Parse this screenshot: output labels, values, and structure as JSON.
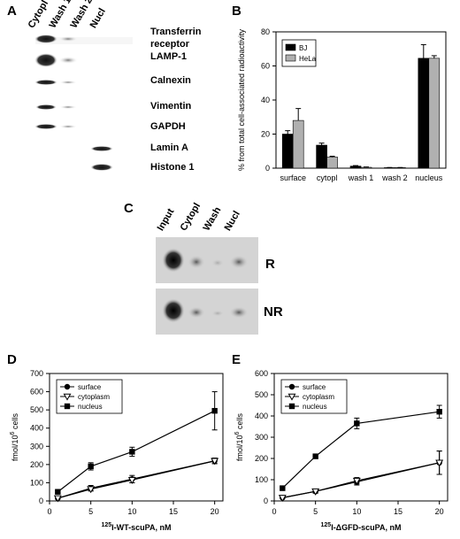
{
  "panels": {
    "a": {
      "label": "A",
      "lanes": [
        "Cytopl",
        "Wash 1",
        "Wash 2",
        "Nucl"
      ],
      "bands": [
        "Transferrin receptor",
        "LAMP-1",
        "Calnexin",
        "Vimentin",
        "GAPDH",
        "Lamin A",
        "Histone 1"
      ],
      "transferrin_line1": "Transferrin",
      "transferrin_line2": "receptor"
    },
    "c": {
      "label": "C",
      "lanes": [
        "Input",
        "Cytopl",
        "Wash",
        "Nucl"
      ],
      "rows": [
        "R",
        "NR"
      ]
    }
  },
  "chart_data": [
    {
      "id": "B",
      "type": "bar",
      "panel_label": "B",
      "categories": [
        "surface",
        "cytopl",
        "wash 1",
        "wash 2",
        "nucleus"
      ],
      "series": [
        {
          "name": "BJ",
          "color": "#000000",
          "values": [
            20,
            13.5,
            1.2,
            0.3,
            64.5
          ],
          "errors": [
            2,
            1.2,
            0.3,
            0.1,
            8
          ]
        },
        {
          "name": "HeLa",
          "color": "#b0b0b0",
          "values": [
            28,
            6.5,
            0.5,
            0.3,
            64.5
          ],
          "errors": [
            7,
            0.5,
            0.2,
            0.1,
            1.5
          ]
        }
      ],
      "ylabel": "% from total cell-associated radioactivity",
      "ylim": [
        0,
        80
      ],
      "yticks": [
        0,
        20,
        40,
        60,
        80
      ],
      "legend": "top-left"
    },
    {
      "id": "D",
      "type": "line",
      "panel_label": "D",
      "x": [
        1,
        5,
        10,
        20
      ],
      "xticks": [
        0,
        5,
        10,
        15,
        20
      ],
      "xlim": [
        0,
        21
      ],
      "series": [
        {
          "name": "surface",
          "marker": "circle",
          "values": [
            15,
            70,
            120,
            220
          ],
          "errors": [
            5,
            15,
            20,
            15
          ]
        },
        {
          "name": "cytoplasm",
          "marker": "triangle",
          "values": [
            15,
            65,
            115,
            220
          ],
          "errors": [
            5,
            10,
            15,
            15
          ]
        },
        {
          "name": "nucleus",
          "marker": "square",
          "values": [
            50,
            190,
            270,
            495
          ],
          "errors": [
            5,
            20,
            25,
            105
          ]
        }
      ],
      "ylabel_main": "fmol/10",
      "ylabel_sup": "6",
      "ylabel_tail": " cells",
      "xlabel_sup": "125",
      "xlabel_main": "I-WT-scuPA, nM",
      "ylim": [
        0,
        700
      ],
      "yticks": [
        0,
        100,
        200,
        300,
        400,
        500,
        600,
        700
      ],
      "legend": "top-left"
    },
    {
      "id": "E",
      "type": "line",
      "panel_label": "E",
      "x": [
        1,
        5,
        10,
        20
      ],
      "xticks": [
        0,
        5,
        10,
        15,
        20
      ],
      "xlim": [
        0,
        21
      ],
      "series": [
        {
          "name": "surface",
          "marker": "circle",
          "values": [
            15,
            45,
            90,
            180
          ],
          "errors": [
            3,
            8,
            15,
            55
          ]
        },
        {
          "name": "cytoplasm",
          "marker": "triangle",
          "values": [
            15,
            45,
            95,
            180
          ],
          "errors": [
            3,
            8,
            15,
            55
          ]
        },
        {
          "name": "nucleus",
          "marker": "square",
          "values": [
            60,
            210,
            365,
            420
          ],
          "errors": [
            5,
            10,
            25,
            30
          ]
        }
      ],
      "ylabel_main": "fmol/10",
      "ylabel_sup": "6",
      "ylabel_tail": " cells",
      "xlabel_sup": "125",
      "xlabel_main": "I-ΔGFD-scuPA, nM",
      "ylim": [
        0,
        600
      ],
      "yticks": [
        0,
        100,
        200,
        300,
        400,
        500,
        600
      ],
      "legend": "top-left"
    }
  ]
}
